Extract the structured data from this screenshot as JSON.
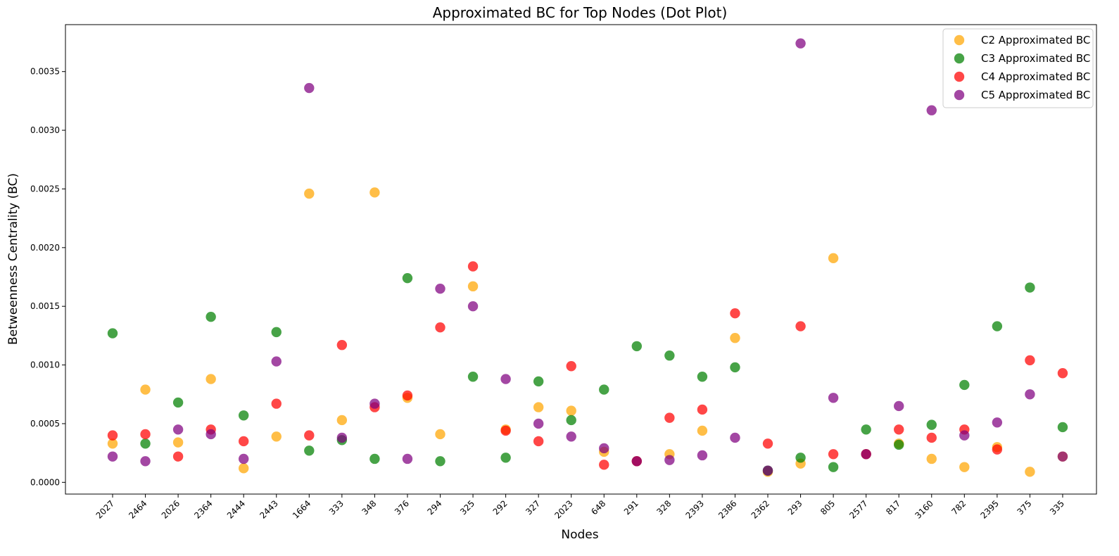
{
  "chart_data": {
    "type": "scatter",
    "title": "Approximated BC for Top Nodes (Dot Plot)",
    "xlabel": "Nodes",
    "ylabel": "Betweenness Centrality (BC)",
    "ylim": [
      -0.0001,
      0.0039
    ],
    "yticks": [
      0.0,
      0.0005,
      0.001,
      0.0015,
      0.002,
      0.0025,
      0.003,
      0.0035
    ],
    "ytick_labels": [
      "0.0000",
      "0.0005",
      "0.0010",
      "0.0015",
      "0.0020",
      "0.0025",
      "0.0030",
      "0.0035"
    ],
    "grid": false,
    "legend_position": "top-right",
    "categories": [
      "2027",
      "2464",
      "2026",
      "2364",
      "2444",
      "2443",
      "1664",
      "333",
      "348",
      "376",
      "294",
      "325",
      "292",
      "327",
      "2023",
      "648",
      "291",
      "328",
      "2393",
      "2386",
      "2362",
      "293",
      "805",
      "2577",
      "817",
      "3160",
      "782",
      "2395",
      "375",
      "335"
    ],
    "series": [
      {
        "name": "C2 Approximated BC",
        "color": "#FFA500",
        "values": [
          0.00033,
          0.00079,
          0.00034,
          0.00088,
          0.00012,
          0.00039,
          0.00246,
          0.00053,
          0.00247,
          0.00072,
          0.00041,
          0.00167,
          0.00045,
          0.00064,
          0.00061,
          0.00026,
          0.00018,
          0.00024,
          0.00044,
          0.00123,
          9e-05,
          0.00016,
          0.00191,
          0.00024,
          0.00033,
          0.0002,
          0.00013,
          0.0003,
          9e-05,
          0.00022
        ]
      },
      {
        "name": "C3 Approximated BC",
        "color": "#008000",
        "values": [
          0.00127,
          0.00033,
          0.00068,
          0.00141,
          0.00057,
          0.00128,
          0.00027,
          0.00036,
          0.0002,
          0.00174,
          0.00018,
          0.0009,
          0.00021,
          0.00086,
          0.00053,
          0.00079,
          0.00116,
          0.00108,
          0.0009,
          0.00098,
          0.0001,
          0.00021,
          0.00013,
          0.00045,
          0.00032,
          0.00049,
          0.00083,
          0.00133,
          0.00166,
          0.00047
        ]
      },
      {
        "name": "C4 Approximated BC",
        "color": "#FF0000",
        "values": [
          0.0004,
          0.00041,
          0.00022,
          0.00045,
          0.00035,
          0.00067,
          0.0004,
          0.00117,
          0.00064,
          0.00074,
          0.00132,
          0.00184,
          0.00044,
          0.00035,
          0.00099,
          0.00015,
          0.00018,
          0.00055,
          0.00062,
          0.00144,
          0.00033,
          0.00133,
          0.00024,
          0.00024,
          0.00045,
          0.00038,
          0.00045,
          0.00028,
          0.00104,
          0.00093
        ]
      },
      {
        "name": "C5 Approximated BC",
        "color": "#800080",
        "values": [
          0.00022,
          0.00018,
          0.00045,
          0.00041,
          0.0002,
          0.00103,
          0.00336,
          0.00038,
          0.00067,
          0.0002,
          0.00165,
          0.0015,
          0.00088,
          0.0005,
          0.00039,
          0.00029,
          0.00018,
          0.00019,
          0.00023,
          0.00038,
          0.0001,
          0.00374,
          0.00072,
          0.00024,
          0.00065,
          0.00317,
          0.0004,
          0.00051,
          0.00075,
          0.00022
        ]
      }
    ]
  }
}
